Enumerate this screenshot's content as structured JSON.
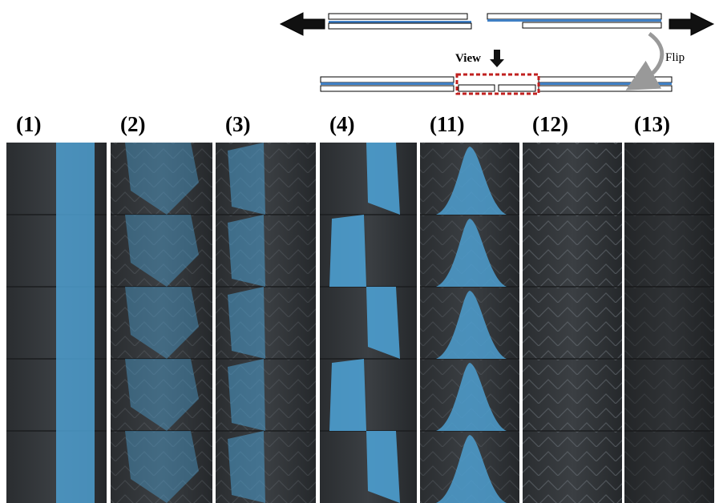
{
  "diagram": {
    "view_label": "View",
    "flip_label": "Flip"
  },
  "panels": [
    {
      "label": "(1)"
    },
    {
      "label": "(2)"
    },
    {
      "label": "(3)"
    },
    {
      "label": "(4)"
    },
    {
      "label": "(11)"
    },
    {
      "label": "(12)"
    },
    {
      "label": "(13)"
    }
  ]
}
